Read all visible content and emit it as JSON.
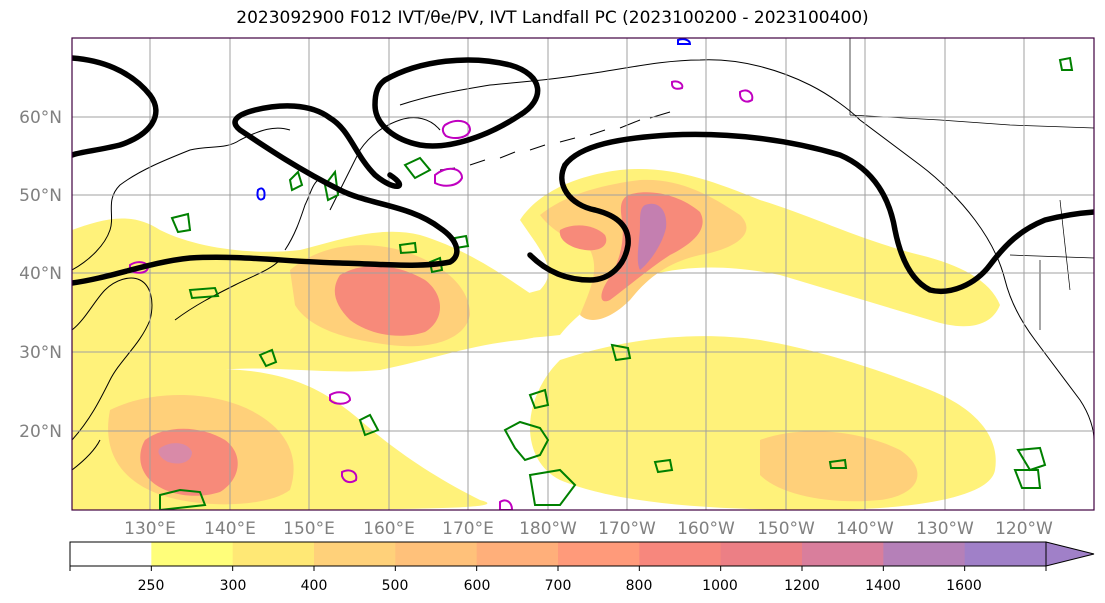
{
  "title": "2023092900 F012 IVT/θe/PV, IVT Landfall PC (2023100200 - 2023100400)",
  "lat_labels": [
    "60°N",
    "50°N",
    "40°N",
    "30°N",
    "20°N"
  ],
  "lon_labels": [
    "130°E",
    "140°E",
    "150°E",
    "160°E",
    "170°E",
    "180°W",
    "170°W",
    "160°W",
    "150°W",
    "140°W",
    "130°W",
    "120°W"
  ],
  "colorbar": {
    "ticks": [
      "250",
      "300",
      "400",
      "500",
      "600",
      "700",
      "800",
      "1000",
      "1200",
      "1400",
      "1600"
    ],
    "colors": [
      "#ffffff",
      "#fffe7a",
      "#ffe875",
      "#ffd17a",
      "#ffc17a",
      "#ffaf7a",
      "#ff9a7a",
      "#f7877d",
      "#ec7f85",
      "#d97e9c",
      "#b580b8",
      "#a080c8"
    ]
  },
  "colors": {
    "ivt_low": "#fff27a",
    "ivt_mid": "#ffc27a",
    "ivt_high": "#f78a7a",
    "ivt_max": "#c47fb0",
    "pv_contour": "#000000",
    "theta_green": "#008000",
    "theta_magenta": "#c000c0",
    "theta_blue": "#0000ff",
    "coast": "#000000",
    "grid": "#a0a0a0",
    "axis_label": "#808080"
  }
}
